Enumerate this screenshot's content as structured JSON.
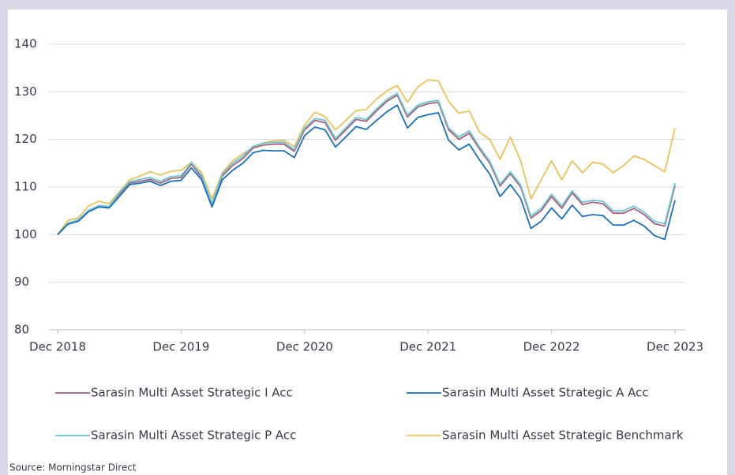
{
  "chart_data": {
    "type": "line",
    "categories": [
      "Dec 2018",
      null,
      null,
      null,
      null,
      null,
      null,
      null,
      null,
      null,
      null,
      null,
      "Dec 2019",
      null,
      null,
      null,
      null,
      null,
      null,
      null,
      null,
      null,
      null,
      null,
      "Dec 2020",
      null,
      null,
      null,
      null,
      null,
      null,
      null,
      null,
      null,
      null,
      null,
      "Dec 2021",
      null,
      null,
      null,
      null,
      null,
      null,
      null,
      null,
      null,
      null,
      null,
      "Dec 2022",
      null,
      null,
      null,
      null,
      null,
      null,
      null,
      null,
      null,
      null,
      null,
      "Dec 2023"
    ],
    "series": [
      {
        "name": "Sarasin Multi Asset Strategic I Acc",
        "color": "#a8607a",
        "values": [
          100,
          102.3,
          103,
          105,
          106,
          105.8,
          108.5,
          110.8,
          111.2,
          111.6,
          110.8,
          111.8,
          112,
          114.8,
          112,
          106.3,
          112.3,
          114.5,
          116,
          118.2,
          118.8,
          119,
          119,
          117.5,
          122,
          124,
          123.5,
          119.8,
          122,
          124.2,
          123.8,
          126,
          128,
          129.3,
          124.7,
          126.8,
          127.5,
          127.8,
          122,
          120,
          121.3,
          118,
          115,
          110.2,
          112.8,
          110,
          103.5,
          105,
          108,
          105.5,
          108.8,
          106.3,
          106.8,
          106.5,
          104.5,
          104.5,
          105.5,
          104.2,
          102.3,
          101.8,
          110.3
        ]
      },
      {
        "name": "Sarasin Multi Asset Strategic A Acc",
        "color": "#1a6fb8",
        "values": [
          100,
          102.2,
          102.8,
          104.8,
          105.8,
          105.6,
          108,
          110.5,
          110.8,
          111.2,
          110.3,
          111.2,
          111.4,
          114,
          111.5,
          105.8,
          111.5,
          113.5,
          115,
          117.2,
          117.7,
          117.6,
          117.6,
          116.2,
          120.8,
          122.6,
          122,
          118.4,
          120.5,
          122.7,
          122.1,
          124,
          125.8,
          127.2,
          122.4,
          124.6,
          125.2,
          125.6,
          119.8,
          117.8,
          119,
          115.7,
          112.7,
          108,
          110.5,
          107.6,
          101.3,
          102.8,
          105.6,
          103.3,
          106.2,
          103.8,
          104.2,
          104,
          102,
          102,
          103,
          101.8,
          99.8,
          99,
          107.2
        ]
      },
      {
        "name": "Sarasin Multi Asset Strategic P Acc",
        "color": "#6cc6d6",
        "values": [
          100,
          102.4,
          103.1,
          105.1,
          106.1,
          105.9,
          108.8,
          111.1,
          111.6,
          112,
          111.2,
          112.2,
          112.4,
          115.1,
          112.4,
          106.5,
          112.7,
          115,
          116.5,
          118.6,
          119.2,
          119.4,
          119.4,
          117.9,
          122.4,
          124.4,
          124,
          120.2,
          122.4,
          124.6,
          124.2,
          126.4,
          128.4,
          129.7,
          125.1,
          127.2,
          127.9,
          128.2,
          122.4,
          120.5,
          121.8,
          118.4,
          115.4,
          110.6,
          113.2,
          110.4,
          103.9,
          105.5,
          108.5,
          106,
          109.2,
          106.8,
          107.2,
          107,
          105,
          105,
          106,
          104.7,
          102.8,
          102.3,
          110.8
        ]
      },
      {
        "name": "Sarasin Multi Asset Strategic Benchmark",
        "color": "#e8c25a",
        "values": [
          100,
          103,
          103.5,
          106,
          107,
          106.5,
          109,
          111.5,
          112.3,
          113.2,
          112.5,
          113.3,
          113.5,
          115.2,
          113,
          107.5,
          113,
          115.5,
          117,
          118.3,
          119.3,
          119.7,
          119.8,
          118.5,
          123,
          125.7,
          124.8,
          122,
          124,
          126,
          126.3,
          128.5,
          130.2,
          131.3,
          127.8,
          131,
          132.5,
          132.3,
          128,
          125.5,
          126,
          121.5,
          120,
          115.8,
          120.5,
          115.5,
          107.5,
          111.5,
          115.5,
          111.5,
          115.5,
          113,
          115.2,
          114.8,
          113,
          114.5,
          116.5,
          115.8,
          114.5,
          113.2,
          122.3
        ]
      }
    ],
    "ylim": [
      80,
      140
    ],
    "yticks": [
      80,
      90,
      100,
      110,
      120,
      130,
      140
    ],
    "grid": true,
    "source": "Source: Morningstar Direct"
  }
}
